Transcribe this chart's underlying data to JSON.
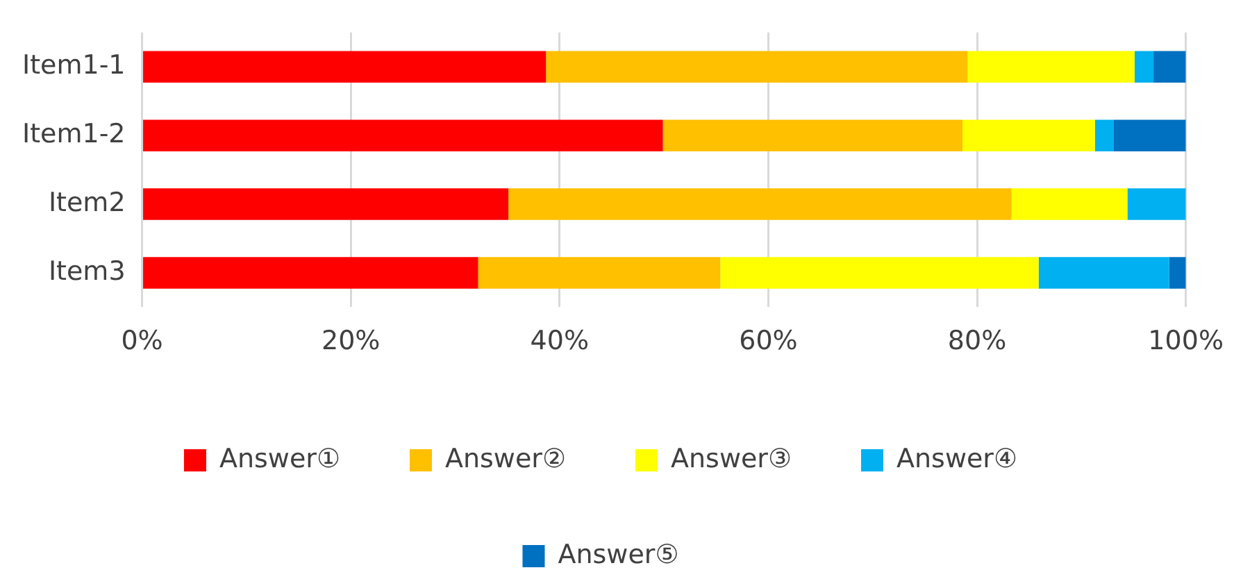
{
  "chart_data": {
    "type": "bar",
    "orientation": "horizontal",
    "stacked": true,
    "categories": [
      "Item1-1",
      "Item1-2",
      "Item2",
      "Item3"
    ],
    "series": [
      {
        "name": "Answer①",
        "color": "#ff0000",
        "values": [
          38.7,
          49.9,
          35.1,
          32.2
        ]
      },
      {
        "name": "Answer②",
        "color": "#ffc000",
        "values": [
          40.4,
          28.7,
          48.2,
          23.2
        ]
      },
      {
        "name": "Answer③",
        "color": "#ffff00",
        "values": [
          16.0,
          12.7,
          11.1,
          30.5
        ]
      },
      {
        "name": "Answer④",
        "color": "#00b0f0",
        "values": [
          1.8,
          1.8,
          5.6,
          12.5
        ]
      },
      {
        "name": "Answer⑤",
        "color": "#0070c0",
        "values": [
          3.1,
          6.9,
          0,
          1.6
        ]
      }
    ],
    "xlim": [
      0,
      100
    ],
    "xticks": [
      {
        "value": 0,
        "label": "0%"
      },
      {
        "value": 20,
        "label": "20%"
      },
      {
        "value": 40,
        "label": "40%"
      },
      {
        "value": 60,
        "label": "60%"
      },
      {
        "value": 80,
        "label": "80%"
      },
      {
        "value": 100,
        "label": "100%"
      }
    ],
    "grid": "x",
    "legend": "bottom"
  }
}
